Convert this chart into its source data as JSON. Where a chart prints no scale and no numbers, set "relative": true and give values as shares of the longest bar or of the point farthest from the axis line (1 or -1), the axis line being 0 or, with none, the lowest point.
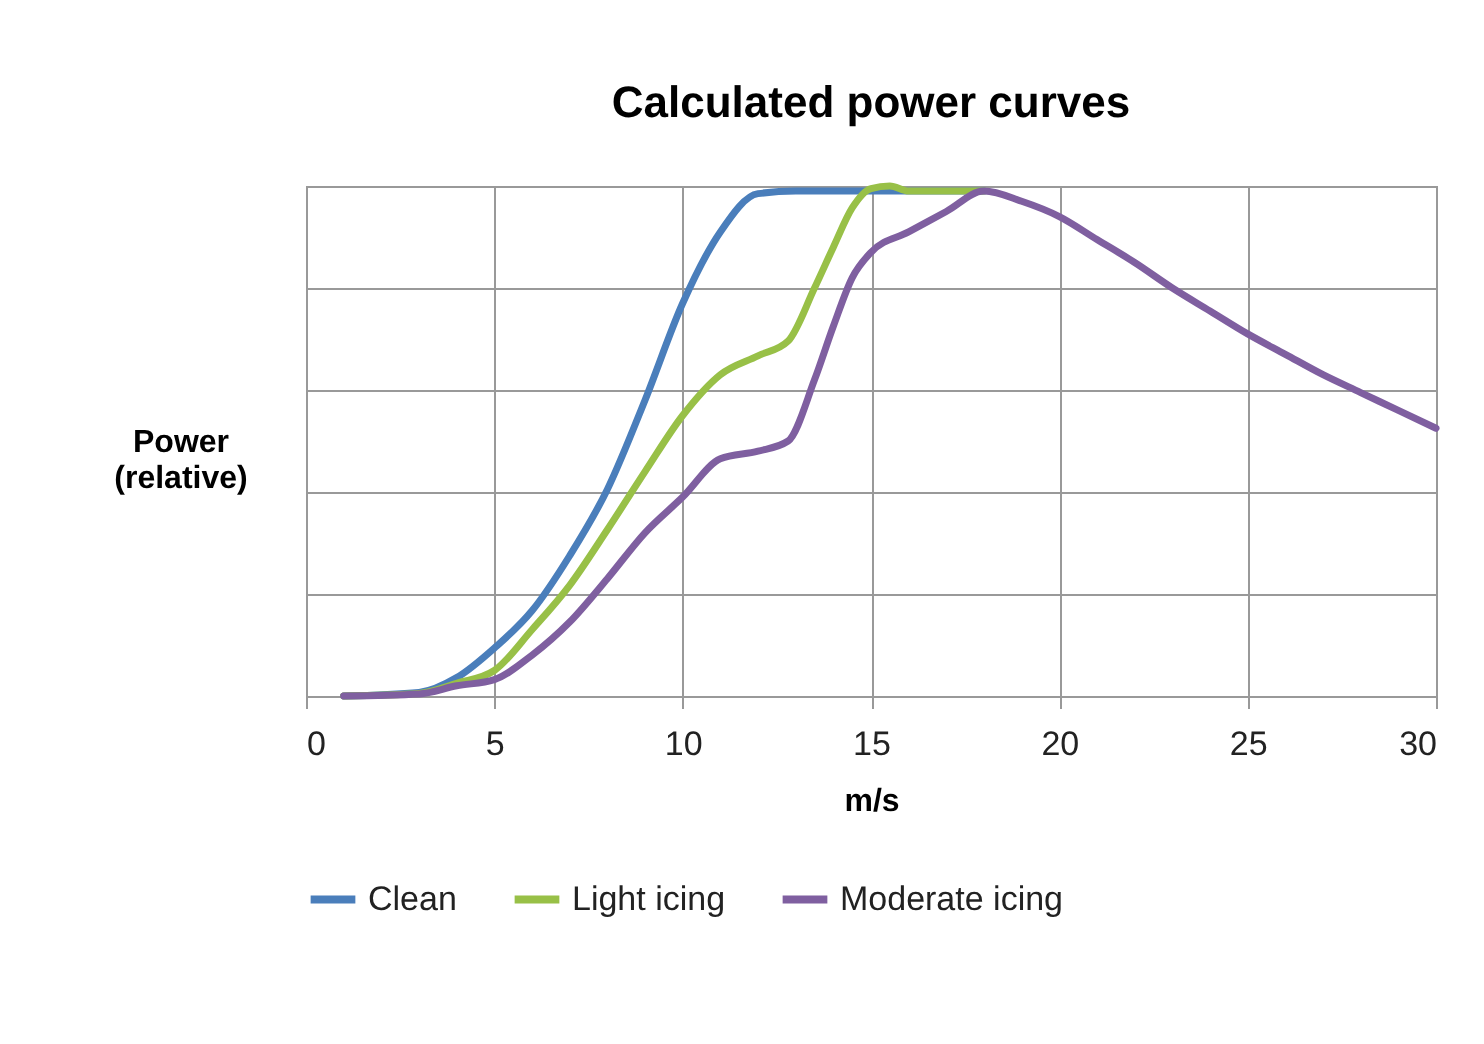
{
  "chart_data": {
    "type": "line",
    "title": "Calculated power curves",
    "xlabel": "m/s",
    "ylabel": "Power (relative)",
    "relative": true,
    "xlim": [
      0,
      30
    ],
    "xticks": [
      0,
      5,
      10,
      15,
      20,
      25,
      30
    ],
    "grid": true,
    "legend": "bottom",
    "marker": "none",
    "line_style": "solid",
    "series": [
      {
        "name": "Clean",
        "color": "#4a7ebb",
        "x": [
          1,
          3,
          4,
          5,
          6,
          7,
          8,
          9,
          10,
          11,
          12,
          13,
          14,
          15,
          16,
          17,
          18
        ],
        "values": [
          0,
          0.007,
          0.036,
          0.094,
          0.167,
          0.275,
          0.405,
          0.58,
          0.77,
          0.91,
          0.985,
          0.99,
          0.99,
          0.99,
          0.99,
          0.99,
          0.99
        ]
      },
      {
        "name": "Light icing",
        "color": "#98c047",
        "x": [
          1,
          3,
          4,
          5,
          6,
          7,
          8,
          9,
          10,
          11,
          12,
          12.8,
          13.5,
          14,
          14.5,
          15,
          15.5,
          16,
          17,
          18
        ],
        "values": [
          0,
          0.005,
          0.025,
          0.05,
          0.13,
          0.217,
          0.326,
          0.44,
          0.55,
          0.63,
          0.667,
          0.696,
          0.8,
          0.88,
          0.957,
          0.995,
          1,
          0.99,
          0.99,
          0.99
        ]
      },
      {
        "name": "Moderate icing",
        "color": "#7f5fa0",
        "x": [
          1,
          3,
          4,
          5,
          6,
          7,
          8,
          9,
          10,
          11,
          12,
          12.8,
          13.5,
          14,
          14.5,
          15,
          16,
          17,
          18,
          19,
          20,
          21,
          22,
          23,
          24,
          25,
          26,
          27,
          28,
          29,
          30
        ],
        "values": [
          0,
          0.004,
          0.02,
          0.032,
          0.08,
          0.145,
          0.23,
          0.32,
          0.39,
          0.465,
          0.48,
          0.5,
          0.62,
          0.725,
          0.82,
          0.87,
          0.91,
          0.95,
          0.99,
          0.97,
          0.94,
          0.895,
          0.85,
          0.8,
          0.755,
          0.71,
          0.67,
          0.63,
          0.595,
          0.56,
          0.525
        ]
      }
    ]
  }
}
